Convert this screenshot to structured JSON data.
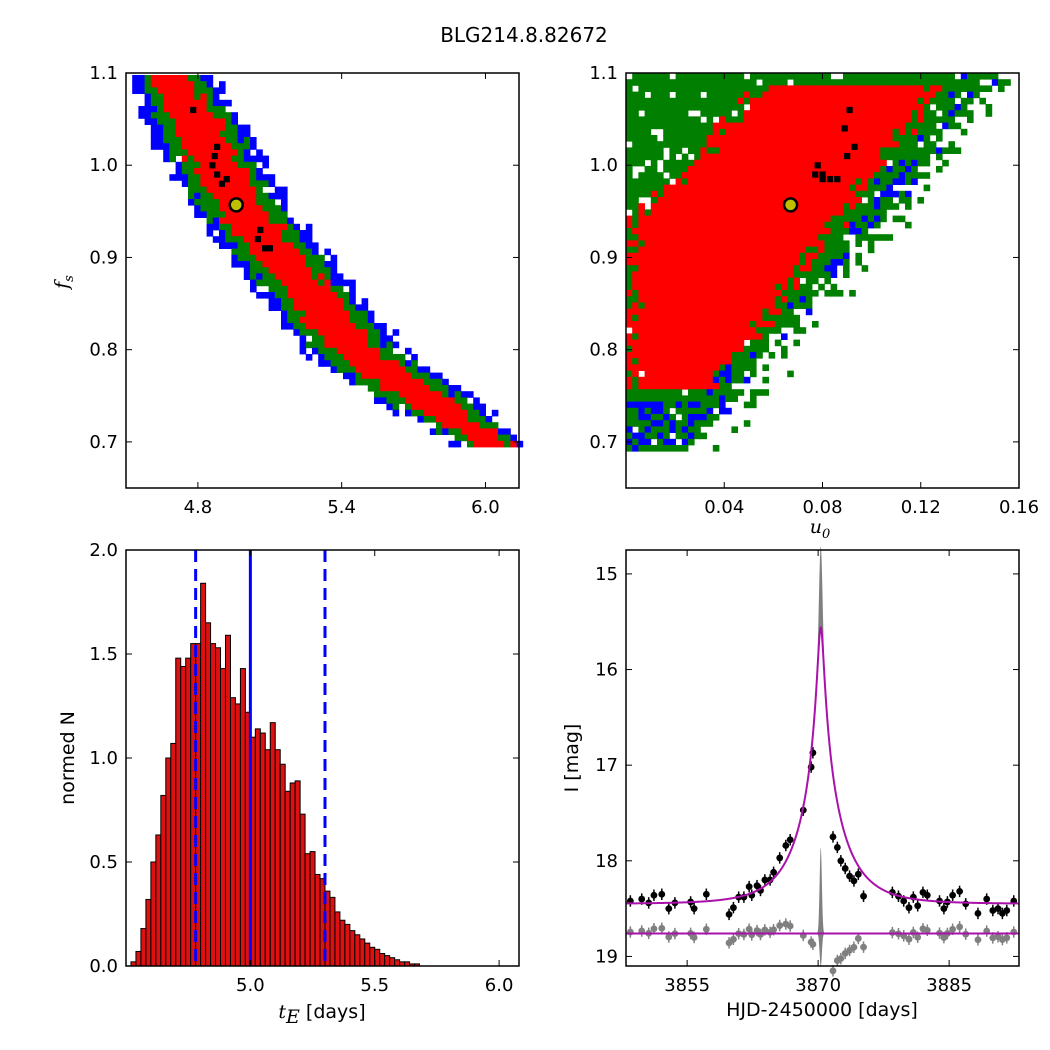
{
  "title": "BLG214.8.82672",
  "colors": {
    "sigma1": "#ff0000",
    "sigma2": "#007f00",
    "sigma3": "#0000ff",
    "best": "#000000",
    "marker_fill": "#bfbf00",
    "hist_fill": "#dd1111",
    "hist_line": "#0000ff",
    "model": "#aa11aa",
    "resid": "#808080"
  },
  "panels": {
    "fs_te": {
      "ylabel_main": "f",
      "ylabel_sub": "s",
      "xticks": [
        "4.8",
        "5.4",
        "6.0"
      ],
      "yticks": [
        "0.7",
        "0.8",
        "0.9",
        "1.0",
        "1.1"
      ]
    },
    "fs_u0": {
      "xlabel_main": "u",
      "xlabel_sub": "0",
      "xticks": [
        "0.04",
        "0.08",
        "0.12",
        "0.16"
      ],
      "yticks": [
        "0.7",
        "0.8",
        "0.9",
        "1.0",
        "1.1"
      ]
    },
    "hist": {
      "xlabel_main": "t",
      "xlabel_sub": "E",
      "xlabel_unit": " [days]",
      "ylabel": "normed N",
      "xticks": [
        "5.0",
        "5.5",
        "6.0"
      ],
      "yticks": [
        "0.0",
        "0.5",
        "1.0",
        "1.5",
        "2.0"
      ]
    },
    "lightcurve": {
      "xlabel": "HJD-2450000 [days]",
      "ylabel": "I [mag]",
      "xticks": [
        "3855",
        "3870",
        "3885"
      ],
      "yticks": [
        "15",
        "16",
        "17",
        "18",
        "19"
      ]
    }
  },
  "chart_data": [
    {
      "type": "heatmap",
      "name": "fs vs tE",
      "x_range": [
        4.5,
        6.14
      ],
      "y_range": [
        0.65,
        1.1
      ],
      "best_fit": {
        "tE": 4.96,
        "fs": 0.957
      },
      "ridge": [
        [
          4.67,
          1.1
        ],
        [
          4.96,
          0.957
        ],
        [
          5.45,
          0.8
        ],
        [
          6.02,
          0.7
        ]
      ],
      "band_halfwidth_tE": {
        "sigma1": 0.1,
        "sigma2": 0.16,
        "sigma3": 0.21
      }
    },
    {
      "type": "heatmap",
      "name": "fs vs u0",
      "x_range": [
        0.0,
        0.16
      ],
      "y_range": [
        0.65,
        1.1
      ],
      "best_fit": {
        "u0": 0.067,
        "fs": 0.957
      }
    },
    {
      "type": "bar",
      "name": "tE posterior histogram",
      "xlim": [
        4.5,
        6.08
      ],
      "ylim": [
        0,
        2.0
      ],
      "bin_left": 4.52,
      "bin_width": 0.02,
      "values": [
        0.02,
        0.07,
        0.18,
        0.32,
        0.5,
        0.63,
        0.82,
        1.0,
        1.07,
        1.48,
        1.44,
        1.48,
        1.55,
        1.55,
        1.84,
        1.65,
        1.55,
        1.53,
        1.43,
        1.59,
        1.29,
        1.26,
        1.43,
        1.22,
        1.1,
        1.14,
        1.12,
        1.04,
        1.17,
        1.04,
        0.97,
        0.84,
        0.88,
        0.89,
        0.73,
        0.54,
        0.55,
        0.44,
        0.42,
        0.36,
        0.33,
        0.26,
        0.22,
        0.2,
        0.17,
        0.15,
        0.13,
        0.11,
        0.09,
        0.08,
        0.06,
        0.05,
        0.04,
        0.03,
        0.02,
        0.02,
        0.01,
        0.01
      ],
      "median": 5.0,
      "lower": 4.78,
      "upper": 5.3
    },
    {
      "type": "scatter",
      "name": "light curve",
      "xlim": [
        3848,
        3893
      ],
      "ylim": [
        19.1,
        14.75
      ],
      "model": {
        "t0": 3870.3,
        "tE": 5.0,
        "u0": 0.067,
        "fs": 0.957,
        "baseline": 18.45
      },
      "residual_offset": 18.76,
      "data": [
        {
          "x": 3848.5,
          "y": 18.42
        },
        {
          "x": 3849.8,
          "y": 18.4
        },
        {
          "x": 3850.6,
          "y": 18.44
        },
        {
          "x": 3851.2,
          "y": 18.36
        },
        {
          "x": 3852.1,
          "y": 18.35
        },
        {
          "x": 3852.9,
          "y": 18.5
        },
        {
          "x": 3853.6,
          "y": 18.44
        },
        {
          "x": 3855.4,
          "y": 18.43
        },
        {
          "x": 3855.8,
          "y": 18.5
        },
        {
          "x": 3857.2,
          "y": 18.35
        },
        {
          "x": 3859.8,
          "y": 18.56
        },
        {
          "x": 3860.3,
          "y": 18.49
        },
        {
          "x": 3860.9,
          "y": 18.38
        },
        {
          "x": 3861.5,
          "y": 18.38
        },
        {
          "x": 3862.1,
          "y": 18.27
        },
        {
          "x": 3862.4,
          "y": 18.36
        },
        {
          "x": 3863.0,
          "y": 18.26
        },
        {
          "x": 3863.4,
          "y": 18.31
        },
        {
          "x": 3863.9,
          "y": 18.2
        },
        {
          "x": 3864.5,
          "y": 18.2
        },
        {
          "x": 3864.9,
          "y": 18.12
        },
        {
          "x": 3865.6,
          "y": 17.97
        },
        {
          "x": 3866.3,
          "y": 17.84
        },
        {
          "x": 3866.8,
          "y": 17.78
        },
        {
          "x": 3868.3,
          "y": 17.47
        },
        {
          "x": 3869.2,
          "y": 17.02
        },
        {
          "x": 3869.4,
          "y": 16.87
        },
        {
          "x": 3871.7,
          "y": 17.75
        },
        {
          "x": 3872.2,
          "y": 17.86
        },
        {
          "x": 3872.6,
          "y": 18.0
        },
        {
          "x": 3873.1,
          "y": 18.08
        },
        {
          "x": 3873.6,
          "y": 18.16
        },
        {
          "x": 3874.1,
          "y": 18.21
        },
        {
          "x": 3874.6,
          "y": 18.14
        },
        {
          "x": 3875.2,
          "y": 18.37
        },
        {
          "x": 3878.5,
          "y": 18.33
        },
        {
          "x": 3879.2,
          "y": 18.37
        },
        {
          "x": 3879.8,
          "y": 18.42
        },
        {
          "x": 3880.4,
          "y": 18.49
        },
        {
          "x": 3880.9,
          "y": 18.38
        },
        {
          "x": 3881.4,
          "y": 18.47
        },
        {
          "x": 3882.0,
          "y": 18.33
        },
        {
          "x": 3882.5,
          "y": 18.36
        },
        {
          "x": 3883.9,
          "y": 18.42
        },
        {
          "x": 3884.4,
          "y": 18.5
        },
        {
          "x": 3884.8,
          "y": 18.43
        },
        {
          "x": 3885.4,
          "y": 18.36
        },
        {
          "x": 3886.2,
          "y": 18.32
        },
        {
          "x": 3886.9,
          "y": 18.45
        },
        {
          "x": 3888.3,
          "y": 18.55
        },
        {
          "x": 3889.3,
          "y": 18.4
        },
        {
          "x": 3890.0,
          "y": 18.52
        },
        {
          "x": 3890.6,
          "y": 18.5
        },
        {
          "x": 3891.1,
          "y": 18.55
        },
        {
          "x": 3891.6,
          "y": 18.52
        },
        {
          "x": 3892.4,
          "y": 18.42
        }
      ]
    }
  ]
}
